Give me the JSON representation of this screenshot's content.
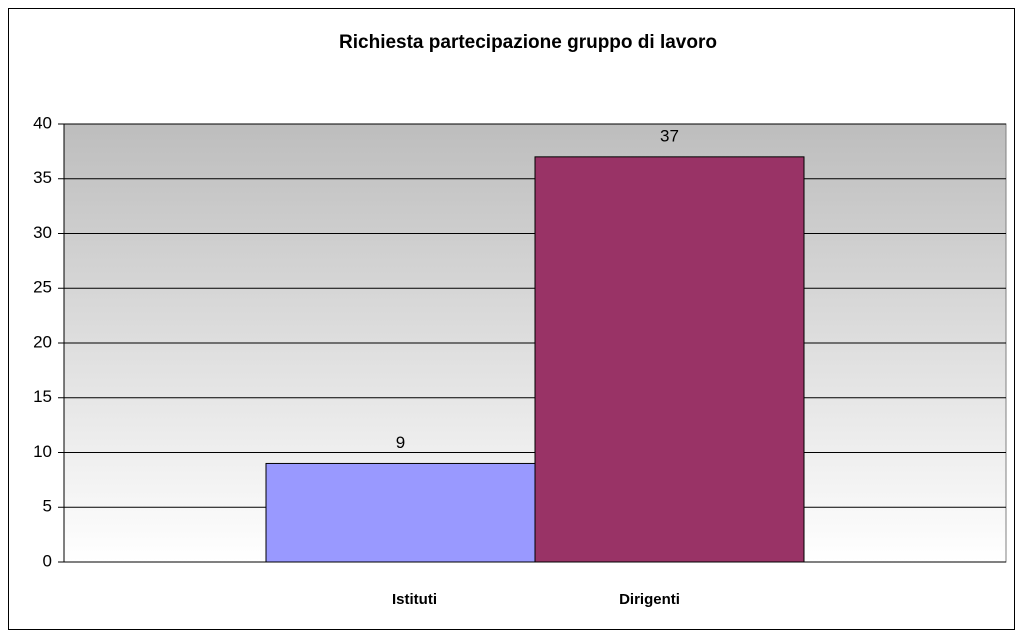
{
  "chart_data": {
    "type": "bar",
    "title": "Richiesta partecipazione gruppo di lavoro",
    "categories": [
      "Istituti",
      "Dirigenti"
    ],
    "values": [
      9,
      37
    ],
    "colors": [
      "#9999ff",
      "#993366"
    ],
    "value_labels_shown": true,
    "ylim": [
      0,
      40
    ],
    "yticks": [
      0,
      5,
      10,
      15,
      20,
      25,
      30,
      35,
      40
    ],
    "grid": true
  }
}
